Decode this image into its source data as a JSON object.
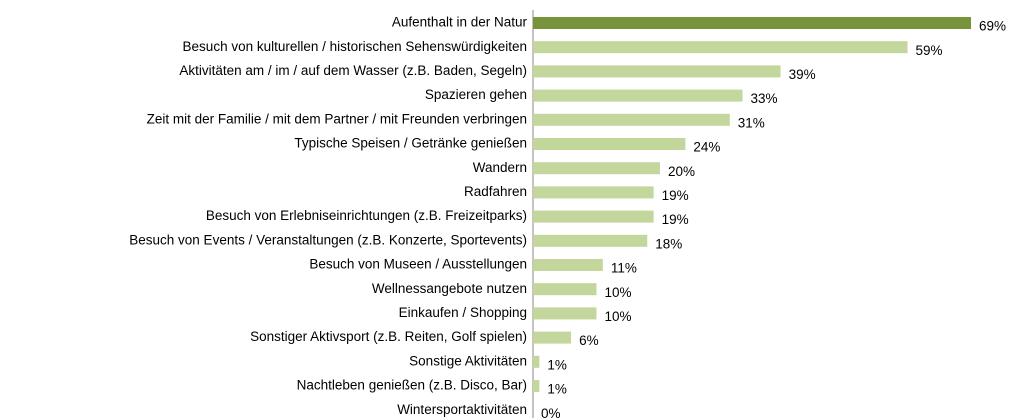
{
  "chart_data": {
    "type": "bar",
    "orientation": "horizontal",
    "categories": [
      "Aufenthalt in der Natur",
      "Besuch von kulturellen / historischen Sehenswürdigkeiten",
      "Aktivitäten am / im / auf dem Wasser (z.B. Baden, Segeln)",
      "Spazieren gehen",
      "Zeit mit der Familie / mit dem Partner / mit Freunden verbringen",
      "Typische Speisen / Getränke genießen",
      "Wandern",
      "Radfahren",
      "Besuch von Erlebniseinrichtungen (z.B. Freizeitparks)",
      "Besuch von Events / Veranstaltungen (z.B. Konzerte, Sportevents)",
      "Besuch von Museen / Ausstellungen",
      "Wellnessangebote nutzen",
      "Einkaufen / Shopping",
      "Sonstiger Aktivsport (z.B. Reiten, Golf spielen)",
      "Sonstige Aktivitäten",
      "Nachtleben genießen (z.B. Disco, Bar)",
      "Wintersportaktivitäten"
    ],
    "values": [
      69,
      59,
      39,
      33,
      31,
      24,
      20,
      19,
      19,
      18,
      11,
      10,
      10,
      6,
      1,
      1,
      0
    ],
    "value_labels": [
      "69%",
      "59%",
      "39%",
      "33%",
      "31%",
      "24%",
      "20%",
      "19%",
      "19%",
      "18%",
      "11%",
      "10%",
      "10%",
      "6%",
      "1%",
      "1%",
      "0%"
    ],
    "colors": [
      "#77933c",
      "#c3d69b",
      "#c3d69b",
      "#c3d69b",
      "#c3d69b",
      "#c3d69b",
      "#c3d69b",
      "#c3d69b",
      "#c3d69b",
      "#c3d69b",
      "#c3d69b",
      "#c3d69b",
      "#c3d69b",
      "#c3d69b",
      "#c3d69b",
      "#c3d69b",
      "#c3d69b"
    ]
  }
}
